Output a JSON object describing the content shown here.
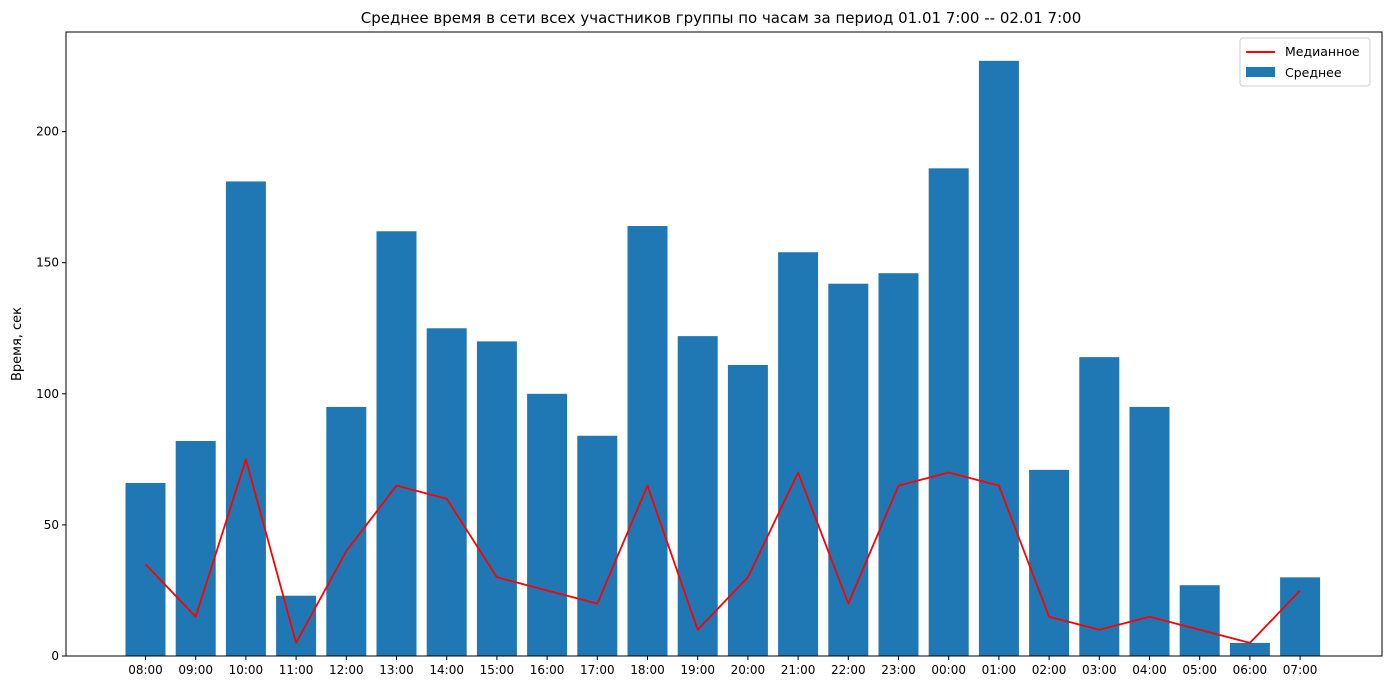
{
  "chart_data": {
    "type": "bar",
    "title": "Среднее время в сети всех участников группы по часам за период 01.01 7:00 -- 02.01 7:00",
    "xlabel": "",
    "ylabel": "Время, сек",
    "ylim": [
      0,
      238
    ],
    "yticks": [
      0,
      50,
      100,
      150,
      200
    ],
    "grid": false,
    "legend_position": "top-right",
    "categories": [
      "08:00",
      "09:00",
      "10:00",
      "11:00",
      "12:00",
      "13:00",
      "14:00",
      "15:00",
      "16:00",
      "17:00",
      "18:00",
      "19:00",
      "20:00",
      "21:00",
      "22:00",
      "23:00",
      "00:00",
      "01:00",
      "02:00",
      "03:00",
      "04:00",
      "05:00",
      "06:00",
      "07:00"
    ],
    "series": [
      {
        "name": "Среднее",
        "kind": "bar",
        "color": "#1f77b4",
        "values": [
          66,
          82,
          181,
          23,
          95,
          162,
          125,
          120,
          100,
          84,
          164,
          122,
          111,
          154,
          142,
          146,
          186,
          227,
          71,
          114,
          95,
          27,
          5,
          30
        ]
      },
      {
        "name": "Медианное",
        "kind": "line",
        "color": "#ff0000",
        "values": [
          35,
          15,
          75,
          5,
          40,
          65,
          60,
          30,
          25,
          20,
          65,
          10,
          30,
          70,
          20,
          65,
          70,
          65,
          15,
          10,
          15,
          10,
          5,
          25
        ]
      }
    ]
  }
}
